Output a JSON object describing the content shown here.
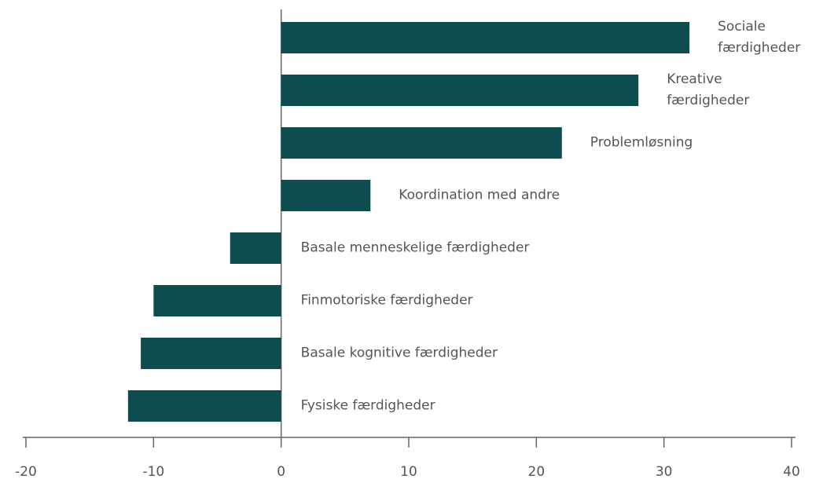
{
  "chart_data": {
    "type": "bar",
    "orientation": "horizontal",
    "categories": [
      "Sociale\nfærdigheder",
      "Kreative\nfærdigheder",
      "Problemløsning",
      "Koordination med andre",
      "Basale menneskelige færdigheder",
      "Finmotoriske færdigheder",
      "Basale kognitive færdigheder",
      "Fysiske færdigheder"
    ],
    "values": [
      32,
      28,
      22,
      7,
      -4,
      -10,
      -11,
      -12
    ],
    "color": "#0d4d4f",
    "xlim": [
      -20,
      40
    ],
    "xticks": [
      -20,
      -10,
      0,
      10,
      20,
      30,
      40
    ],
    "grid": false
  }
}
